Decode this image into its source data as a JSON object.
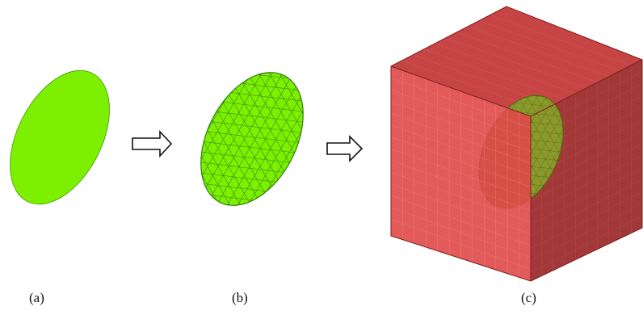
{
  "captions": {
    "a": "(a)",
    "b": "(b)",
    "c": "(c)"
  },
  "colors": {
    "disc_fill": "#7cf000",
    "disc_edge": "#3c9a00",
    "mesh_line": "#2e7d14",
    "cube_front": "#e04848",
    "cube_top": "#c74444",
    "cube_right": "#a33838",
    "cube_edge": "#7a1e1e",
    "arrow_stroke": "#111111",
    "inner_disc": "#8a9a2a"
  },
  "icons": {
    "arrow1": "right-arrow-icon",
    "arrow2": "right-arrow-icon"
  }
}
